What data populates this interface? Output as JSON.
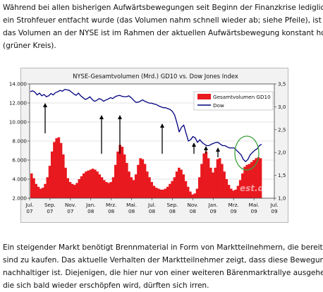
{
  "paragraph_top": [
    "Während bei allen bisherigen Aufwärtsbewegungen seit Beginn der Finanzkrise lediglich",
    "ein Strohfeuer entfacht wurde (das Volumen nahm schnell wieder ab; siehe Pfeile), ist",
    "das Volumen an der NYSE ist im Rahmen der aktuellen Aufwärtsbewegung konstant hoch",
    "(grüner Kreis)."
  ],
  "paragraph_bottom": [
    "Ein steigender Markt benötigt Brennmaterial in Form von Marktteilnehmern, die bereit",
    "sind zu kaufen. Das aktuelle Verhalten der Marktteilnehmer zeigt, dass diese Bewegung",
    "nachhaltiger ist. Diejenigen, die hier nur von einer weiteren Bärenmarktrallye ausgehen,",
    "die sich bald wieder erschöpfen wird, dürften sich irren."
  ],
  "chart_data": {
    "type": "bar",
    "title": "NYSE-Gesamtvolumen (Mrd.) GD10 vs. Dow Jones Index",
    "watermark": "est.de",
    "legend_position": "top-right",
    "x_tick_labels": [
      [
        "Jul.",
        "07"
      ],
      [
        "Sep.",
        "07"
      ],
      [
        "Nov.",
        "07"
      ],
      [
        "Jan.",
        "08"
      ],
      [
        "Mrz.",
        "08"
      ],
      [
        "Mai.",
        "08"
      ],
      [
        "Jul.",
        "08"
      ],
      [
        "Sep.",
        "08"
      ],
      [
        "Nov.",
        "08"
      ],
      [
        "Jan.",
        "09"
      ],
      [
        "Mrz.",
        "09"
      ],
      [
        "Mai.",
        "09"
      ],
      [
        "Jul.",
        "09"
      ]
    ],
    "y_left": {
      "range": [
        2000,
        14000
      ],
      "ticks": [
        2000,
        4000,
        6000,
        8000,
        10000,
        12000,
        14000
      ],
      "tick_labels": [
        "2.000",
        "4.000",
        "6.000",
        "8.000",
        "10.000",
        "12.000",
        "14.000"
      ]
    },
    "y_right": {
      "range": [
        1.0,
        3.5
      ],
      "ticks": [
        1.0,
        1.5,
        2.0,
        2.5,
        3.0,
        3.5
      ],
      "tick_labels": [
        "1,0",
        "1,5",
        "2,0",
        "2,5",
        "3,0",
        "3,5"
      ]
    },
    "series": [
      {
        "name": "Gesamtvolumen GD10",
        "kind": "bar",
        "axis": "left",
        "color": "#e8191f",
        "values": [
          4600,
          4100,
          3500,
          3200,
          3000,
          3100,
          3500,
          4200,
          5400,
          6900,
          7900,
          8300,
          8400,
          7800,
          6600,
          5200,
          4100,
          3700,
          3500,
          3400,
          3600,
          4000,
          4300,
          4600,
          4800,
          4900,
          5000,
          5100,
          5000,
          4800,
          4500,
          4200,
          3900,
          3700,
          3600,
          3700,
          4200,
          5500,
          6900,
          7600,
          7400,
          6600,
          5700,
          4800,
          4200,
          3900,
          4500,
          5500,
          6200,
          6100,
          5600,
          4800,
          4200,
          3700,
          3300,
          3100,
          3000,
          2900,
          2900,
          3000,
          3200,
          3500,
          3800,
          4200,
          4800,
          5200,
          5000,
          4500,
          3800,
          3200,
          2700,
          2400,
          2500,
          3000,
          4200,
          5600,
          6700,
          6900,
          6200,
          5200,
          4700,
          5200,
          6100,
          6200,
          5600,
          4800,
          4000,
          3400,
          3000,
          2800,
          2900,
          3300,
          3900,
          4600,
          5300,
          5500,
          5600,
          5800,
          6000,
          6200,
          6300,
          6200
        ]
      },
      {
        "name": "Dow",
        "kind": "line",
        "axis": "right",
        "color": "#000080",
        "values": [
          3.33,
          3.35,
          3.32,
          3.26,
          3.3,
          3.24,
          3.27,
          3.22,
          3.24,
          3.29,
          3.26,
          3.31,
          3.33,
          3.36,
          3.34,
          3.38,
          3.37,
          3.36,
          3.32,
          3.28,
          3.25,
          3.3,
          3.24,
          3.2,
          3.16,
          3.18,
          3.22,
          3.16,
          3.12,
          3.14,
          3.18,
          3.16,
          3.12,
          3.15,
          3.17,
          3.2,
          3.18,
          3.22,
          3.24,
          3.25,
          3.23,
          3.22,
          3.22,
          3.24,
          3.2,
          3.15,
          3.1,
          3.1,
          3.12,
          3.15,
          3.12,
          3.1,
          3.08,
          3.08,
          3.06,
          3.05,
          3.02,
          3.0,
          2.98,
          2.98,
          2.96,
          2.94,
          2.9,
          2.82,
          2.65,
          2.45,
          2.55,
          2.6,
          2.42,
          2.25,
          2.28,
          2.35,
          2.32,
          2.22,
          2.28,
          2.22,
          2.18,
          2.15,
          2.15,
          2.18,
          2.2,
          2.22,
          2.22,
          2.18,
          2.15,
          2.15,
          2.12,
          2.1,
          2.1,
          2.1,
          2.05,
          2.0,
          1.95,
          1.85,
          1.8,
          1.85,
          1.95,
          2.0,
          2.05,
          2.08,
          2.15,
          2.18
        ]
      }
    ],
    "annotations": {
      "arrow_count": 7,
      "circle_color": "#3ca03c"
    }
  }
}
